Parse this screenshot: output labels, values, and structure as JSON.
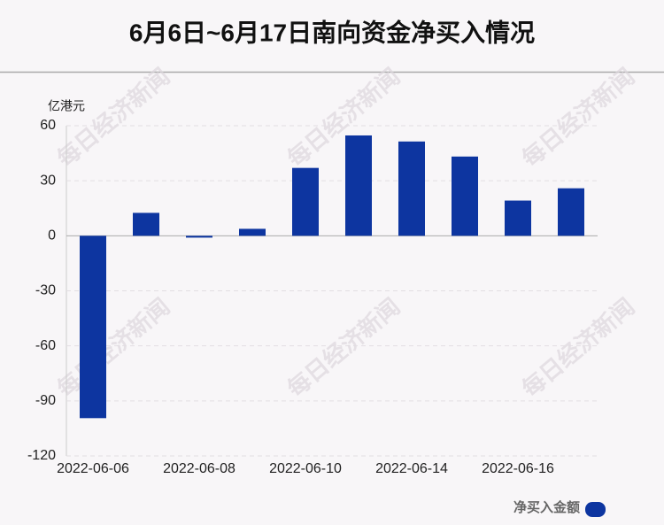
{
  "chart_data": {
    "type": "bar",
    "title": "6月6日~6月17日南向资金净买入情况",
    "y_label": "亿港元",
    "watermark": "每日经济新闻",
    "categories": [
      "2022-06-06",
      null,
      "2022-06-08",
      null,
      "2022-06-10",
      null,
      "2022-06-14",
      null,
      "2022-06-16",
      null
    ],
    "series": [
      {
        "name": "净买入金额",
        "color": "#0d35a0",
        "values": [
          -99.4,
          12.5,
          -1,
          3.8,
          37,
          54.7,
          51.4,
          43.2,
          19.2,
          25.9
        ]
      }
    ],
    "ylim": [
      -120,
      60
    ],
    "yticks": [
      -120,
      -90,
      -60,
      -30,
      0,
      30,
      60
    ],
    "grid": true,
    "legend": "bottom-right"
  }
}
